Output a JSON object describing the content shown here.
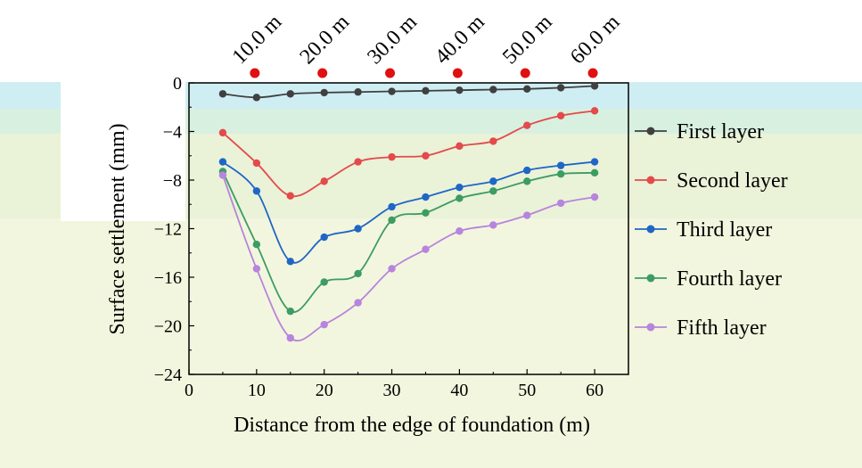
{
  "chart_data": {
    "type": "line",
    "xlabel": "Distance from the edge of foundation  (m)",
    "ylabel": "Surface settlement (mm)",
    "xlim": [
      0,
      65
    ],
    "ylim": [
      -24,
      0
    ],
    "xticks": [
      "0",
      "10",
      "20",
      "30",
      "40",
      "50",
      "60"
    ],
    "yticks": [
      "0",
      "−4",
      "−8",
      "−12",
      "−16",
      "−20",
      "−24"
    ],
    "x": [
      5,
      10,
      15,
      20,
      25,
      30,
      35,
      40,
      45,
      50,
      55,
      60
    ],
    "series": [
      {
        "name": "First layer",
        "color": "#404040",
        "values": [
          -0.9,
          -1.2,
          -0.9,
          -0.8,
          -0.75,
          -0.7,
          -0.65,
          -0.6,
          -0.55,
          -0.5,
          -0.4,
          -0.25
        ]
      },
      {
        "name": "Second layer",
        "color": "#e34a4a",
        "values": [
          -4.1,
          -6.6,
          -9.3,
          -8.1,
          -6.5,
          -6.1,
          -6.0,
          -5.2,
          -4.8,
          -3.5,
          -2.7,
          -2.3
        ]
      },
      {
        "name": "Third layer",
        "color": "#1f66c6",
        "values": [
          -6.5,
          -8.9,
          -14.7,
          -12.7,
          -12.0,
          -10.2,
          -9.4,
          -8.6,
          -8.1,
          -7.2,
          -6.8,
          -6.5
        ]
      },
      {
        "name": "Fourth layer",
        "color": "#3c9c62",
        "values": [
          -7.3,
          -13.3,
          -18.8,
          -16.4,
          -15.7,
          -11.3,
          -10.7,
          -9.5,
          -8.9,
          -8.1,
          -7.5,
          -7.4
        ]
      },
      {
        "name": "Fifth layer",
        "color": "#b784de",
        "values": [
          -7.6,
          -15.3,
          -21.0,
          -19.9,
          -18.1,
          -15.3,
          -13.7,
          -12.2,
          -11.7,
          -10.9,
          -9.9,
          -9.4
        ]
      }
    ],
    "positions": {
      "labels": [
        "10.0 m",
        "20.0 m",
        "30.0 m",
        "40.0 m",
        "50.0 m",
        "60.0 m"
      ],
      "x": [
        10,
        20,
        30,
        40,
        50,
        60
      ],
      "marker_color": "#e01010"
    },
    "grid": false,
    "legend_position": "right"
  }
}
